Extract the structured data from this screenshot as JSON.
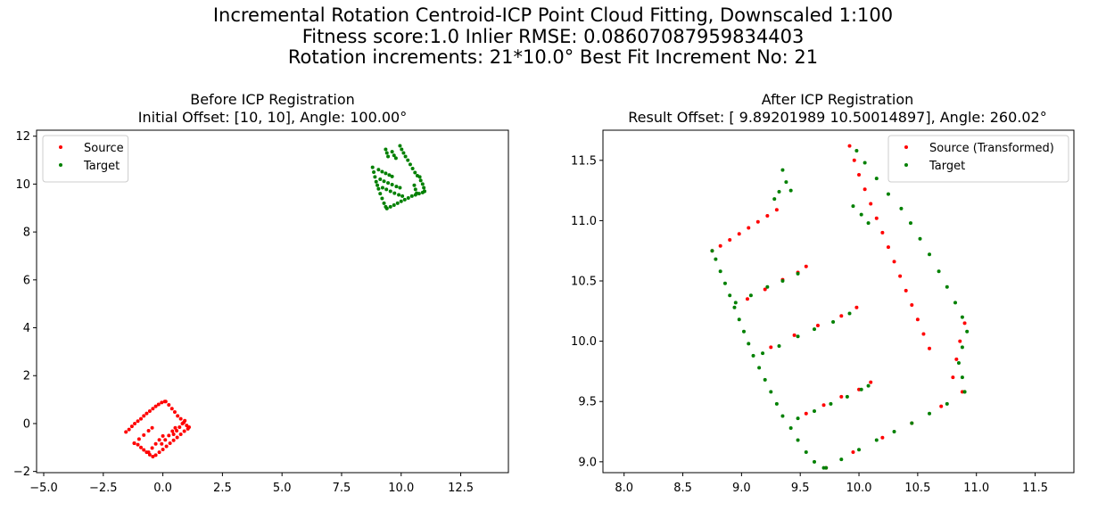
{
  "suptitle": {
    "line1": "Incremental Rotation Centroid-ICP Point Cloud Fitting, Downscaled 1:100",
    "line2": "Fitness score:1.0   Inlier RMSE: 0.08607087959834403",
    "line3": "Rotation increments: 21*10.0°    Best Fit Increment No: 21"
  },
  "chart_data": [
    {
      "type": "scatter",
      "title": "Before ICP Registration",
      "subtitle": "Initial Offset: [10, 10], Angle: 100.00°",
      "xlabel": "",
      "ylabel": "",
      "xlim": [
        -5.3,
        14.5
      ],
      "ylim": [
        -2.05,
        12.25
      ],
      "xticks": [
        -5.0,
        -2.5,
        0.0,
        2.5,
        5.0,
        7.5,
        10.0,
        12.5
      ],
      "xtick_labels": [
        "−5.0",
        "−2.5",
        "0.0",
        "2.5",
        "5.0",
        "7.5",
        "10.0",
        "12.5"
      ],
      "yticks": [
        -2,
        0,
        2,
        4,
        6,
        8,
        10,
        12
      ],
      "ytick_labels": [
        "−2",
        "0",
        "2",
        "4",
        "6",
        "8",
        "10",
        "12"
      ],
      "grid": false,
      "legend_position": "top-left",
      "series": [
        {
          "name": "Source",
          "color": "#ff0000",
          "points": [
            [
              -1.55,
              -0.35
            ],
            [
              -1.42,
              -0.25
            ],
            [
              -1.3,
              -0.12
            ],
            [
              -1.18,
              0.0
            ],
            [
              -1.05,
              0.1
            ],
            [
              -0.92,
              0.2
            ],
            [
              -0.8,
              0.32
            ],
            [
              -0.68,
              0.42
            ],
            [
              -0.55,
              0.52
            ],
            [
              -0.42,
              0.62
            ],
            [
              -0.3,
              0.72
            ],
            [
              -0.18,
              0.8
            ],
            [
              -0.05,
              0.88
            ],
            [
              0.08,
              0.92
            ],
            [
              0.12,
              0.92
            ],
            [
              0.25,
              0.78
            ],
            [
              0.38,
              0.62
            ],
            [
              0.5,
              0.48
            ],
            [
              0.62,
              0.32
            ],
            [
              0.75,
              0.2
            ],
            [
              0.88,
              0.05
            ],
            [
              1.0,
              -0.08
            ],
            [
              1.1,
              -0.15
            ],
            [
              -1.2,
              -0.82
            ],
            [
              -1.05,
              -0.88
            ],
            [
              -0.92,
              -1.0
            ],
            [
              -0.8,
              -1.1
            ],
            [
              -0.68,
              -1.2
            ],
            [
              -0.55,
              -1.3
            ],
            [
              -0.42,
              -1.38
            ],
            [
              -0.3,
              -1.32
            ],
            [
              -0.15,
              -1.2
            ],
            [
              0.0,
              -1.08
            ],
            [
              0.15,
              -0.95
            ],
            [
              0.3,
              -0.82
            ],
            [
              0.45,
              -0.7
            ],
            [
              0.6,
              -0.58
            ],
            [
              0.75,
              -0.45
            ],
            [
              0.9,
              -0.32
            ],
            [
              1.05,
              -0.22
            ],
            [
              -1.2,
              -0.82
            ],
            [
              -1.0,
              -0.65
            ],
            [
              -0.8,
              -0.48
            ],
            [
              -0.6,
              -0.3
            ],
            [
              -0.45,
              -0.18
            ],
            [
              -0.6,
              -1.2
            ],
            [
              -0.45,
              -1.02
            ],
            [
              -0.3,
              -0.85
            ],
            [
              -0.15,
              -0.68
            ],
            [
              0.0,
              -0.52
            ],
            [
              -0.05,
              -0.85
            ],
            [
              0.1,
              -0.68
            ],
            [
              0.25,
              -0.5
            ],
            [
              0.4,
              -0.32
            ],
            [
              0.52,
              -0.18
            ],
            [
              0.45,
              -0.45
            ],
            [
              0.58,
              -0.3
            ],
            [
              0.7,
              -0.15
            ],
            [
              0.82,
              0.0
            ],
            [
              0.92,
              0.12
            ]
          ]
        },
        {
          "name": "Target",
          "color": "#008000",
          "points": [
            [
              8.8,
              10.7
            ],
            [
              8.85,
              10.5
            ],
            [
              8.9,
              10.3
            ],
            [
              8.95,
              10.1
            ],
            [
              9.0,
              9.95
            ],
            [
              9.05,
              9.8
            ],
            [
              9.12,
              9.6
            ],
            [
              9.2,
              9.4
            ],
            [
              9.28,
              9.2
            ],
            [
              9.35,
              9.05
            ],
            [
              9.4,
              8.98
            ],
            [
              9.4,
              8.98
            ],
            [
              9.55,
              9.05
            ],
            [
              9.7,
              9.12
            ],
            [
              9.85,
              9.2
            ],
            [
              10.0,
              9.28
            ],
            [
              10.15,
              9.35
            ],
            [
              10.3,
              9.42
            ],
            [
              10.45,
              9.5
            ],
            [
              10.6,
              9.55
            ],
            [
              10.75,
              9.6
            ],
            [
              10.9,
              9.65
            ],
            [
              10.98,
              9.7
            ],
            [
              10.98,
              9.7
            ],
            [
              10.95,
              9.85
            ],
            [
              10.9,
              10.0
            ],
            [
              10.82,
              10.15
            ],
            [
              10.78,
              10.3
            ],
            [
              9.95,
              11.6
            ],
            [
              10.02,
              11.45
            ],
            [
              10.1,
              11.3
            ],
            [
              10.18,
              11.15
            ],
            [
              10.28,
              11.0
            ],
            [
              10.38,
              10.82
            ],
            [
              10.48,
              10.65
            ],
            [
              10.58,
              10.48
            ],
            [
              10.68,
              10.35
            ],
            [
              9.35,
              11.45
            ],
            [
              9.4,
              11.3
            ],
            [
              9.45,
              11.15
            ],
            [
              9.05,
              10.6
            ],
            [
              9.2,
              10.52
            ],
            [
              9.35,
              10.45
            ],
            [
              9.5,
              10.38
            ],
            [
              9.62,
              10.32
            ],
            [
              9.12,
              10.2
            ],
            [
              9.28,
              10.12
            ],
            [
              9.45,
              10.05
            ],
            [
              9.62,
              9.98
            ],
            [
              9.8,
              9.9
            ],
            [
              9.95,
              9.85
            ],
            [
              9.22,
              9.85
            ],
            [
              9.38,
              9.78
            ],
            [
              9.55,
              9.7
            ],
            [
              9.72,
              9.62
            ],
            [
              9.9,
              9.55
            ],
            [
              10.05,
              9.5
            ],
            [
              10.55,
              9.95
            ],
            [
              10.6,
              9.78
            ],
            [
              10.65,
              9.62
            ],
            [
              9.62,
              11.35
            ],
            [
              9.7,
              11.2
            ],
            [
              9.78,
              11.08
            ]
          ]
        }
      ]
    },
    {
      "type": "scatter",
      "title": "After ICP Registration",
      "subtitle": "Result Offset: [ 9.89201989 10.50014897], Angle: 260.02°",
      "xlabel": "",
      "ylabel": "",
      "xlim": [
        7.82,
        11.83
      ],
      "ylim": [
        8.91,
        11.75
      ],
      "xticks": [
        8.0,
        8.5,
        9.0,
        9.5,
        10.0,
        10.5,
        11.0,
        11.5
      ],
      "xtick_labels": [
        "8.0",
        "8.5",
        "9.0",
        "9.5",
        "10.0",
        "10.5",
        "11.0",
        "11.5"
      ],
      "yticks": [
        9.0,
        9.5,
        10.0,
        10.5,
        11.0,
        11.5
      ],
      "ytick_labels": [
        "9.0",
        "9.5",
        "10.0",
        "10.5",
        "11.0",
        "11.5"
      ],
      "grid": false,
      "legend_position": "top-right",
      "series": [
        {
          "name": "Source (Transformed)",
          "color": "#ff0000",
          "points": [
            [
              8.75,
              10.75
            ],
            [
              8.82,
              10.79
            ],
            [
              8.9,
              10.84
            ],
            [
              8.98,
              10.89
            ],
            [
              9.06,
              10.94
            ],
            [
              9.14,
              10.99
            ],
            [
              9.22,
              11.04
            ],
            [
              9.3,
              11.09
            ],
            [
              9.92,
              11.62
            ],
            [
              9.96,
              11.5
            ],
            [
              10.0,
              11.38
            ],
            [
              10.05,
              11.26
            ],
            [
              10.1,
              11.14
            ],
            [
              10.15,
              11.02
            ],
            [
              10.2,
              10.9
            ],
            [
              10.25,
              10.78
            ],
            [
              10.3,
              10.66
            ],
            [
              10.35,
              10.54
            ],
            [
              10.4,
              10.42
            ],
            [
              10.45,
              10.3
            ],
            [
              10.5,
              10.18
            ],
            [
              10.55,
              10.06
            ],
            [
              10.6,
              9.94
            ],
            [
              9.05,
              10.35
            ],
            [
              9.2,
              10.43
            ],
            [
              9.35,
              10.51
            ],
            [
              9.48,
              10.57
            ],
            [
              9.55,
              10.62
            ],
            [
              9.25,
              9.95
            ],
            [
              9.45,
              10.05
            ],
            [
              9.65,
              10.13
            ],
            [
              9.85,
              10.21
            ],
            [
              9.98,
              10.28
            ],
            [
              9.55,
              9.4
            ],
            [
              9.7,
              9.47
            ],
            [
              9.85,
              9.54
            ],
            [
              10.0,
              9.6
            ],
            [
              10.1,
              9.66
            ],
            [
              9.72,
              8.95
            ],
            [
              9.95,
              9.08
            ],
            [
              10.2,
              9.2
            ],
            [
              10.45,
              9.32
            ],
            [
              10.7,
              9.46
            ],
            [
              10.88,
              9.58
            ],
            [
              10.8,
              9.7
            ],
            [
              10.83,
              9.85
            ],
            [
              10.86,
              10.0
            ],
            [
              10.9,
              10.15
            ]
          ]
        },
        {
          "name": "Target",
          "color": "#008000",
          "points": [
            [
              8.75,
              10.75
            ],
            [
              8.78,
              10.68
            ],
            [
              8.82,
              10.58
            ],
            [
              8.86,
              10.48
            ],
            [
              8.9,
              10.38
            ],
            [
              8.94,
              10.28
            ],
            [
              8.98,
              10.18
            ],
            [
              9.02,
              10.08
            ],
            [
              9.06,
              9.98
            ],
            [
              9.1,
              9.88
            ],
            [
              9.15,
              9.78
            ],
            [
              9.2,
              9.68
            ],
            [
              9.25,
              9.58
            ],
            [
              9.3,
              9.48
            ],
            [
              9.35,
              9.38
            ],
            [
              9.42,
              9.28
            ],
            [
              9.48,
              9.18
            ],
            [
              9.55,
              9.08
            ],
            [
              9.62,
              9.0
            ],
            [
              9.7,
              8.95
            ],
            [
              9.72,
              8.95
            ],
            [
              9.85,
              9.02
            ],
            [
              10.0,
              9.1
            ],
            [
              10.15,
              9.18
            ],
            [
              10.3,
              9.25
            ],
            [
              10.45,
              9.32
            ],
            [
              10.6,
              9.4
            ],
            [
              10.75,
              9.48
            ],
            [
              10.9,
              9.58
            ],
            [
              10.9,
              9.58
            ],
            [
              10.88,
              9.7
            ],
            [
              10.85,
              9.82
            ],
            [
              10.88,
              9.95
            ],
            [
              10.92,
              10.08
            ],
            [
              10.88,
              10.2
            ],
            [
              10.82,
              10.32
            ],
            [
              10.75,
              10.45
            ],
            [
              10.68,
              10.58
            ],
            [
              10.6,
              10.72
            ],
            [
              10.52,
              10.85
            ],
            [
              10.44,
              10.98
            ],
            [
              10.36,
              11.1
            ],
            [
              10.25,
              11.22
            ],
            [
              10.15,
              11.35
            ],
            [
              10.05,
              11.48
            ],
            [
              9.98,
              11.58
            ],
            [
              9.95,
              11.12
            ],
            [
              10.02,
              11.05
            ],
            [
              10.08,
              10.98
            ],
            [
              8.95,
              10.32
            ],
            [
              9.08,
              10.38
            ],
            [
              9.22,
              10.45
            ],
            [
              9.35,
              10.5
            ],
            [
              9.48,
              10.56
            ],
            [
              9.18,
              9.9
            ],
            [
              9.32,
              9.96
            ],
            [
              9.48,
              10.04
            ],
            [
              9.62,
              10.1
            ],
            [
              9.78,
              10.16
            ],
            [
              9.92,
              10.23
            ],
            [
              9.48,
              9.36
            ],
            [
              9.62,
              9.42
            ],
            [
              9.76,
              9.48
            ],
            [
              9.9,
              9.54
            ],
            [
              10.02,
              9.6
            ],
            [
              10.08,
              9.63
            ],
            [
              9.35,
              11.42
            ],
            [
              9.38,
              11.32
            ],
            [
              9.42,
              11.25
            ],
            [
              9.28,
              11.18
            ],
            [
              9.32,
              11.24
            ]
          ]
        }
      ]
    }
  ]
}
